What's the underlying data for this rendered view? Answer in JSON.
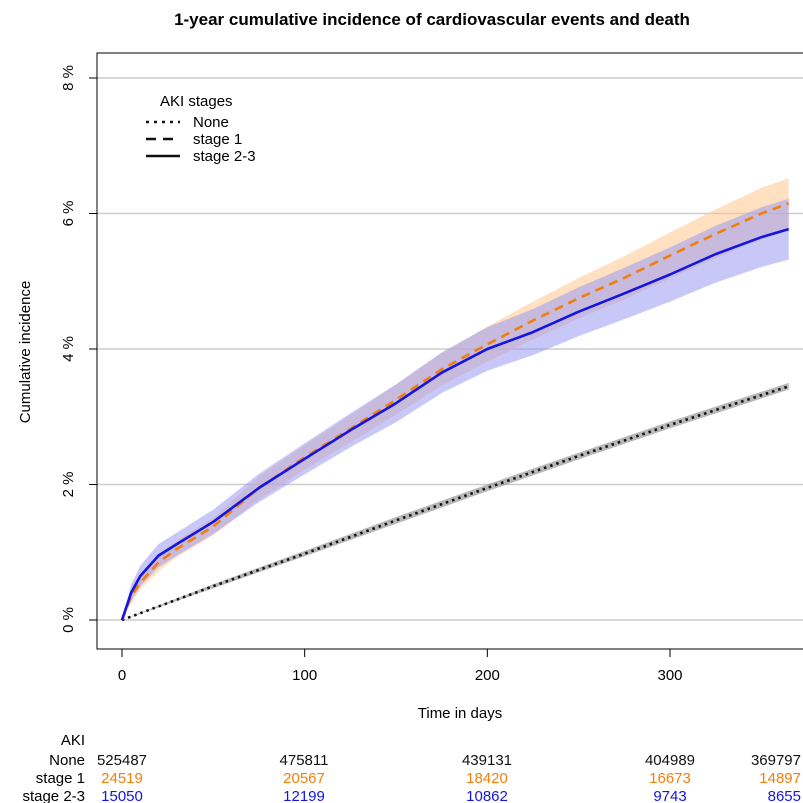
{
  "chart_data": {
    "type": "line",
    "title": "1-year cumulative incidence of cardiovascular events and death",
    "xlabel": "Time in days",
    "ylabel": "Cumulative incidence",
    "xlim": [
      0,
      365
    ],
    "ylim": [
      0,
      8
    ],
    "x_ticks": [
      {
        "value": 0,
        "label": "0"
      },
      {
        "value": 100,
        "label": "100"
      },
      {
        "value": 200,
        "label": "200"
      },
      {
        "value": 300,
        "label": "300"
      }
    ],
    "y_ticks": [
      {
        "value": 0,
        "label": "0 %"
      },
      {
        "value": 2,
        "label": "2 %"
      },
      {
        "value": 4,
        "label": "4 %"
      },
      {
        "value": 6,
        "label": "6 %"
      },
      {
        "value": 8,
        "label": "8 %"
      }
    ],
    "grid": "horizontal",
    "legend": {
      "title": "AKI stages",
      "position": "top-left",
      "entries": [
        "None",
        "stage 1",
        "stage 2-3"
      ]
    },
    "series": [
      {
        "name": "None",
        "color": "#111111",
        "band_color": "#888888",
        "line_style": "dotted",
        "x": [
          0,
          50,
          100,
          150,
          200,
          250,
          300,
          365
        ],
        "y": [
          0,
          0.5,
          0.98,
          1.47,
          1.95,
          2.42,
          2.88,
          3.45
        ],
        "lower": [
          0,
          0.47,
          0.94,
          1.42,
          1.9,
          2.37,
          2.83,
          3.4
        ],
        "upper": [
          0,
          0.53,
          1.02,
          1.52,
          2.0,
          2.47,
          2.93,
          3.5
        ]
      },
      {
        "name": "stage 1",
        "color": "#f07f0c",
        "band_color": "#ffc890",
        "line_style": "dashed",
        "x": [
          0,
          5,
          10,
          20,
          30,
          50,
          75,
          100,
          125,
          150,
          175,
          200,
          225,
          250,
          275,
          300,
          325,
          350,
          365
        ],
        "y": [
          0,
          0.35,
          0.55,
          0.85,
          1.05,
          1.38,
          1.95,
          2.4,
          2.82,
          3.25,
          3.7,
          4.07,
          4.42,
          4.75,
          5.05,
          5.38,
          5.7,
          6.0,
          6.15
        ],
        "lower": [
          0,
          0.25,
          0.45,
          0.72,
          0.93,
          1.25,
          1.78,
          2.22,
          2.62,
          3.03,
          3.46,
          3.81,
          4.14,
          4.45,
          4.73,
          5.04,
          5.34,
          5.62,
          5.76
        ],
        "upper": [
          0,
          0.45,
          0.65,
          0.98,
          1.17,
          1.51,
          2.12,
          2.58,
          3.02,
          3.47,
          3.94,
          4.33,
          4.7,
          5.05,
          5.37,
          5.72,
          6.06,
          6.38,
          6.52
        ]
      },
      {
        "name": "stage 2-3",
        "color": "#1515e0",
        "band_color": "#9b9bf2",
        "line_style": "solid",
        "x": [
          0,
          5,
          10,
          20,
          30,
          50,
          75,
          100,
          125,
          150,
          175,
          200,
          225,
          250,
          275,
          300,
          325,
          350,
          365
        ],
        "y": [
          0,
          0.4,
          0.65,
          0.95,
          1.12,
          1.45,
          1.95,
          2.38,
          2.8,
          3.2,
          3.65,
          4.0,
          4.25,
          4.55,
          4.82,
          5.1,
          5.4,
          5.65,
          5.77
        ],
        "lower": [
          0,
          0.28,
          0.5,
          0.78,
          0.95,
          1.27,
          1.74,
          2.15,
          2.55,
          2.92,
          3.35,
          3.68,
          3.91,
          4.19,
          4.44,
          4.7,
          4.98,
          5.21,
          5.32
        ],
        "upper": [
          0,
          0.52,
          0.8,
          1.12,
          1.29,
          1.63,
          2.16,
          2.61,
          3.05,
          3.48,
          3.95,
          4.32,
          4.59,
          4.91,
          5.2,
          5.5,
          5.82,
          6.09,
          6.22
        ]
      }
    ],
    "risk_table": {
      "header": "AKI",
      "rows": [
        {
          "label": "None",
          "color": "#111111",
          "values": [
            "525487",
            "475811",
            "439131",
            "404989",
            "369797"
          ]
        },
        {
          "label": "stage 1",
          "color": "#f07f0c",
          "values": [
            "24519",
            "20567",
            "18420",
            "16673",
            "14897"
          ]
        },
        {
          "label": "stage 2-3",
          "color": "#1515e0",
          "values": [
            "15050",
            "12199",
            "10862",
            "9743",
            "8655"
          ]
        }
      ]
    }
  }
}
